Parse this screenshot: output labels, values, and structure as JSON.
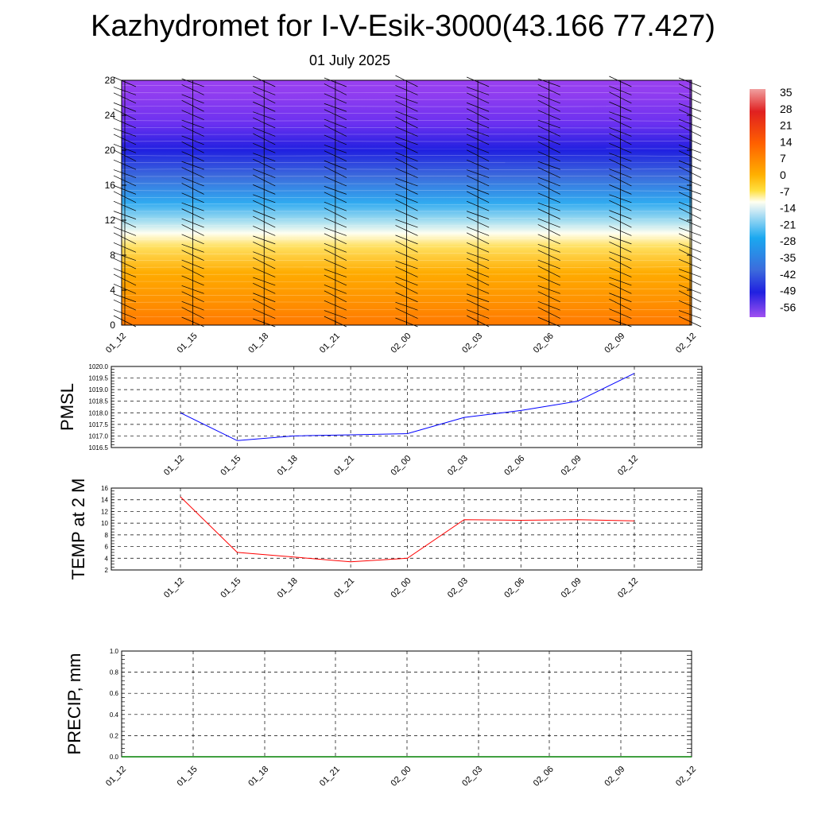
{
  "title": "Kazhydromet for I-V-Esik-3000(43.166 77.427)",
  "subtitle": "01 July 2025",
  "chart_data": [
    {
      "type": "heatmap",
      "name": "cross-section",
      "x_labels": [
        "01_12",
        "01_15",
        "01_18",
        "01_21",
        "02_00",
        "02_03",
        "02_06",
        "02_09",
        "02_12"
      ],
      "ylim": [
        0,
        28
      ],
      "yticks": [
        0,
        4,
        8,
        12,
        16,
        20,
        24,
        28
      ],
      "colorbar": {
        "labels": [
          "35",
          "28",
          "21",
          "14",
          "7",
          "0",
          "-7",
          "-14",
          "-21",
          "-28",
          "-35",
          "-42",
          "-49",
          "-56"
        ],
        "stops": [
          {
            "value": 38,
            "color": "#f0a0a0"
          },
          {
            "value": 28,
            "color": "#e02020"
          },
          {
            "value": 14,
            "color": "#ff6000"
          },
          {
            "value": 0,
            "color": "#ffb000"
          },
          {
            "value": -7,
            "color": "#ffe040"
          },
          {
            "value": -12,
            "color": "#fffff0"
          },
          {
            "value": -16,
            "color": "#c8e8f4"
          },
          {
            "value": -28,
            "color": "#1aa8f0"
          },
          {
            "value": -42,
            "color": "#3c6cdc"
          },
          {
            "value": -52,
            "color": "#2020e0"
          },
          {
            "value": -63,
            "color": "#a050f0"
          }
        ]
      },
      "bands": [
        {
          "value": 0,
          "color": "#ff7800"
        },
        {
          "value": 3,
          "color": "#ff9400"
        },
        {
          "value": 6,
          "color": "#ffac00"
        },
        {
          "value": 9,
          "color": "#ffe060"
        },
        {
          "value": 10.5,
          "color": "#fffff0"
        },
        {
          "value": 12,
          "color": "#a0dcf0"
        },
        {
          "value": 14,
          "color": "#30aaf0"
        },
        {
          "value": 17,
          "color": "#3c6cdc"
        },
        {
          "value": 20,
          "color": "#2020e0"
        },
        {
          "value": 23,
          "color": "#6a30f0"
        },
        {
          "value": 26,
          "color": "#8c3cf0"
        },
        {
          "value": 28,
          "color": "#9a40f0"
        }
      ]
    },
    {
      "type": "line",
      "name": "PMSL",
      "ylabel": "PMSL",
      "x": [
        "01_12",
        "01_15",
        "01_18",
        "01_21",
        "02_00",
        "02_03",
        "02_06",
        "02_09",
        "02_12"
      ],
      "values": [
        1018.0,
        1016.8,
        1017.0,
        1017.05,
        1017.1,
        1017.8,
        1018.1,
        1018.5,
        1019.7
      ],
      "ylim": [
        1016.5,
        1020.0
      ],
      "yticks": [
        "1016.5",
        "1017.0",
        "1017.5",
        "1018.0",
        "1018.5",
        "1019.0",
        "1019.5",
        "1020.0"
      ],
      "color": "#0000ff",
      "grid": true
    },
    {
      "type": "line",
      "name": "TEMP at 2 M",
      "ylabel": "TEMP at 2 M",
      "x": [
        "01_12",
        "01_15",
        "01_18",
        "01_21",
        "02_00",
        "02_03",
        "02_06",
        "02_09",
        "02_12"
      ],
      "values": [
        14.5,
        5.0,
        4.2,
        3.4,
        4.0,
        10.6,
        10.5,
        10.6,
        10.4
      ],
      "ylim": [
        2,
        16
      ],
      "yticks": [
        "2",
        "4",
        "6",
        "8",
        "10",
        "12",
        "14",
        "16"
      ],
      "color": "#ff0000",
      "grid": true
    },
    {
      "type": "line",
      "name": "PRECIP, mm",
      "ylabel": "PRECIP, mm",
      "x": [
        "01_12",
        "01_15",
        "01_18",
        "01_21",
        "02_00",
        "02_03",
        "02_06",
        "02_09",
        "02_12"
      ],
      "values": [
        0,
        0,
        0,
        0,
        0,
        0,
        0,
        0,
        0
      ],
      "ylim": [
        0,
        1
      ],
      "yticks": [
        "0.0",
        "0.2",
        "0.4",
        "0.6",
        "0.8",
        "1.0"
      ],
      "color": "#008000",
      "grid": true
    }
  ]
}
